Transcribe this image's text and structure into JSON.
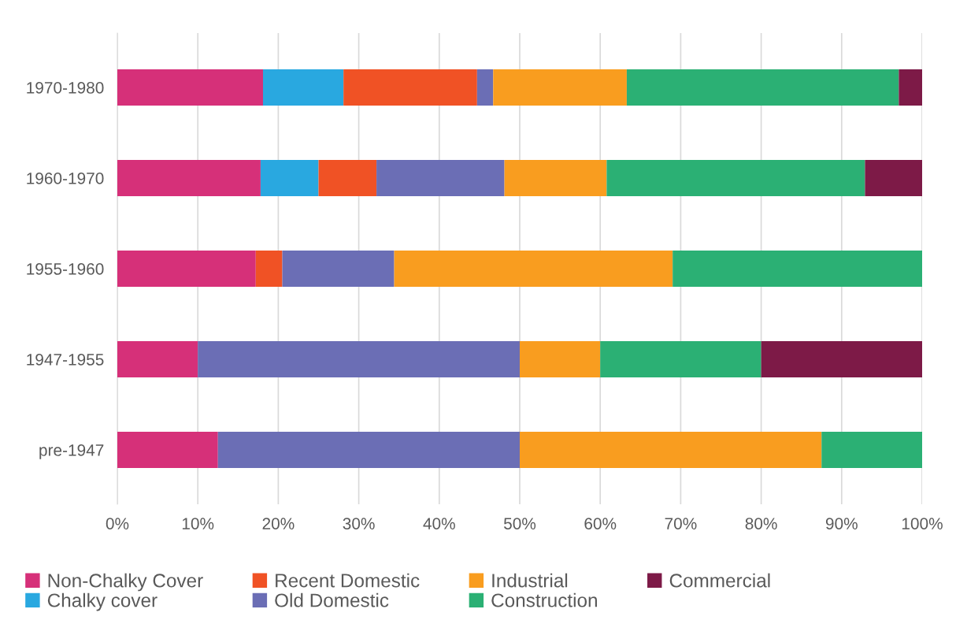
{
  "chart_data": {
    "type": "bar",
    "orientation": "horizontal",
    "stacked": true,
    "categories": [
      "1970-1980",
      "1960-1970",
      "1955-1960",
      "1947-1955",
      "pre-1947"
    ],
    "series": [
      {
        "name": "Non-Chalky Cover",
        "color": "#d63079",
        "values": [
          18.1,
          17.8,
          17.2,
          10,
          12.5
        ]
      },
      {
        "name": "Chalky cover",
        "color": "#29a8e0",
        "values": [
          10.0,
          7.2,
          0,
          0,
          0
        ]
      },
      {
        "name": "Recent Domestic",
        "color": "#f05225",
        "values": [
          16.6,
          7.2,
          3.3,
          0,
          0
        ]
      },
      {
        "name": "Old Domestic",
        "color": "#6b6eb5",
        "values": [
          2.0,
          15.9,
          13.9,
          40,
          37.5
        ]
      },
      {
        "name": "Industrial",
        "color": "#f99d1f",
        "values": [
          16.6,
          12.7,
          34.6,
          10,
          37.5
        ]
      },
      {
        "name": "Construction",
        "color": "#2bb074",
        "values": [
          33.8,
          32.1,
          31.0,
          20,
          12.5
        ]
      },
      {
        "name": "Commercial",
        "color": "#7d1a47",
        "values": [
          2.9,
          7.1,
          0,
          20,
          0
        ]
      }
    ],
    "xlim": [
      0,
      100
    ],
    "xticks": [
      {
        "value": 0,
        "label": "0%"
      },
      {
        "value": 10,
        "label": "10%"
      },
      {
        "value": 20,
        "label": "20%"
      },
      {
        "value": 30,
        "label": "30%"
      },
      {
        "value": 40,
        "label": "40%"
      },
      {
        "value": 50,
        "label": "50%"
      },
      {
        "value": 60,
        "label": "60%"
      },
      {
        "value": 70,
        "label": "70%"
      },
      {
        "value": 80,
        "label": "80%"
      },
      {
        "value": 90,
        "label": "90%"
      },
      {
        "value": 100,
        "label": "100%"
      }
    ],
    "grid": "x",
    "legend": "bottom"
  }
}
